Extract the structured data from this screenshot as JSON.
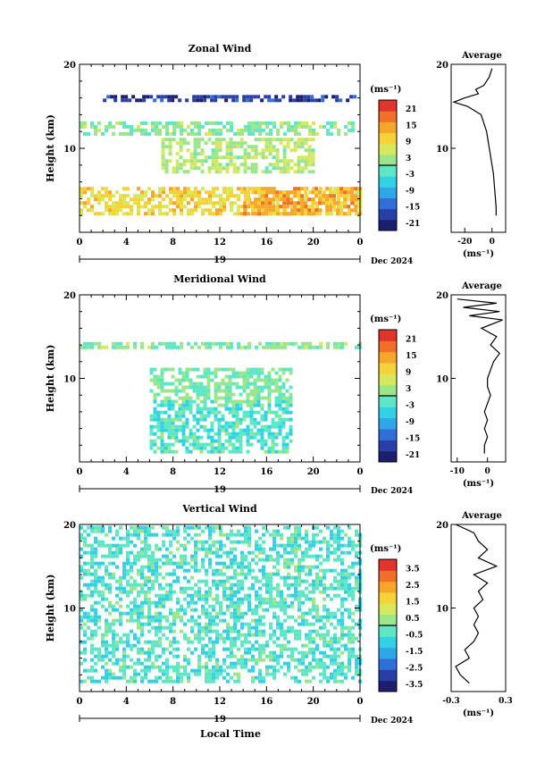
{
  "colorscale": [
    "#1c1f6e",
    "#2a3fa6",
    "#2f6fd6",
    "#2fa6e8",
    "#33d1e6",
    "#5fe6c4",
    "#9be68a",
    "#d8e85c",
    "#f5d23a",
    "#f7a52b",
    "#f0702a",
    "#e0352a"
  ],
  "chart_data": [
    {
      "type": "heatmap",
      "title": "Zonal Wind",
      "ylabel": "Height (km)",
      "yticks": [
        "20",
        "10"
      ],
      "xticks": [
        "0",
        "4",
        "8",
        "12",
        "16",
        "20",
        "0"
      ],
      "date_day": "19",
      "date_label": "Dec 2024",
      "colorbar_unit": "(ms⁻¹)",
      "colorbar_ticks": [
        "21",
        "15",
        "9",
        "3",
        "-3",
        "-9",
        "-15",
        "-21"
      ],
      "profile": {
        "title": "Average",
        "yticks": [
          "20",
          "10"
        ],
        "xticks": [
          "-20",
          "0"
        ],
        "xlabel": "(ms⁻¹)",
        "xlim": [
          -30,
          10
        ],
        "points": [
          [
            3,
            2
          ],
          [
            3,
            3
          ],
          [
            2.5,
            4
          ],
          [
            2,
            5
          ],
          [
            1.5,
            6
          ],
          [
            1,
            7
          ],
          [
            0,
            8
          ],
          [
            -1,
            9
          ],
          [
            -2,
            10
          ],
          [
            -3,
            11
          ],
          [
            -4,
            12
          ],
          [
            -6,
            13
          ],
          [
            -8,
            14
          ],
          [
            -18,
            15
          ],
          [
            -28,
            15.5
          ],
          [
            -20,
            16
          ],
          [
            -10,
            16.5
          ],
          [
            -12,
            17
          ],
          [
            -6,
            17.5
          ],
          [
            -4,
            18
          ],
          [
            -2,
            18.5
          ],
          [
            -1,
            19
          ],
          [
            0,
            19.5
          ]
        ]
      },
      "rows": [
        {
          "h": 15.5,
          "h_end": 16,
          "x0": 2,
          "x1": 23.5,
          "v": -20
        },
        {
          "h": 11.5,
          "h_end": 13,
          "x0": 0,
          "x1": 23.5,
          "v": 1
        },
        {
          "h": 7,
          "h_end": 11,
          "x0": 7,
          "x1": 20,
          "v": 4
        },
        {
          "h": 2,
          "h_end": 5,
          "x0": 0,
          "x1": 24,
          "v": 10
        },
        {
          "h": 2,
          "h_end": 5,
          "x0": 14,
          "x1": 24,
          "v": 15
        }
      ]
    },
    {
      "type": "heatmap",
      "title": "Meridional Wind",
      "ylabel": "Height (km)",
      "yticks": [
        "20",
        "10"
      ],
      "xticks": [
        "0",
        "4",
        "8",
        "12",
        "16",
        "20",
        "0"
      ],
      "date_day": "19",
      "date_label": "Dec 2024",
      "colorbar_unit": "(ms⁻¹)",
      "colorbar_ticks": [
        "21",
        "15",
        "9",
        "3",
        "-3",
        "-9",
        "-15",
        "-21"
      ],
      "profile": {
        "title": "Average",
        "yticks": [
          "20",
          "10"
        ],
        "xticks": [
          "-10",
          "0"
        ],
        "xlabel": "(ms⁻¹)",
        "xlim": [
          -12,
          6
        ],
        "points": [
          [
            -1,
            1
          ],
          [
            -1,
            2
          ],
          [
            0,
            3
          ],
          [
            -1,
            4
          ],
          [
            0,
            5
          ],
          [
            -1,
            6
          ],
          [
            0,
            7
          ],
          [
            1,
            8
          ],
          [
            0,
            9
          ],
          [
            0,
            10
          ],
          [
            1,
            11
          ],
          [
            2,
            12
          ],
          [
            4,
            13
          ],
          [
            1,
            14
          ],
          [
            3,
            15
          ],
          [
            -2,
            16
          ],
          [
            5,
            17
          ],
          [
            -6,
            17.5
          ],
          [
            4,
            18
          ],
          [
            -8,
            18.5
          ],
          [
            3,
            19
          ],
          [
            -10,
            19.5
          ]
        ]
      },
      "rows": [
        {
          "h": 13.5,
          "h_end": 14,
          "x0": 0,
          "x1": 24,
          "v": 1
        },
        {
          "h": 7,
          "h_end": 11,
          "x0": 6,
          "x1": 18,
          "v": 0
        },
        {
          "h": 1,
          "h_end": 7,
          "x0": 6,
          "x1": 18,
          "v": -3
        }
      ]
    },
    {
      "type": "heatmap",
      "title": "Vertical Wind",
      "ylabel": "Height (km)",
      "yticks": [
        "20",
        "10"
      ],
      "xticks": [
        "0",
        "4",
        "8",
        "12",
        "16",
        "20",
        "0"
      ],
      "date_day": "19",
      "date_label": "Dec 2024",
      "xlabel": "Local Time",
      "colorbar_unit": "(ms⁻¹)",
      "colorbar_ticks": [
        "3.5",
        "2.5",
        "1.5",
        "0.5",
        "-0.5",
        "-1.5",
        "-2.5",
        "-3.5"
      ],
      "profile": {
        "title": "Average",
        "yticks": [
          "20",
          "10"
        ],
        "xticks": [
          "-0.3",
          "0.3"
        ],
        "xlabel": "(ms⁻¹)",
        "xlim": [
          -0.3,
          0.3
        ],
        "points": [
          [
            -0.1,
            1
          ],
          [
            -0.2,
            2
          ],
          [
            -0.25,
            3
          ],
          [
            -0.1,
            4
          ],
          [
            -0.15,
            5
          ],
          [
            -0.05,
            6
          ],
          [
            0,
            7
          ],
          [
            -0.05,
            8
          ],
          [
            0,
            9
          ],
          [
            -0.05,
            10
          ],
          [
            0.05,
            11
          ],
          [
            0,
            12
          ],
          [
            0.1,
            13
          ],
          [
            -0.05,
            14
          ],
          [
            0.2,
            15
          ],
          [
            0,
            16
          ],
          [
            0.1,
            17
          ],
          [
            0,
            18
          ],
          [
            -0.05,
            19
          ],
          [
            -0.25,
            20
          ]
        ]
      },
      "rows": [
        {
          "h": 1,
          "h_end": 19.5,
          "x0": 0,
          "x1": 24,
          "v": -0.5
        }
      ]
    }
  ]
}
